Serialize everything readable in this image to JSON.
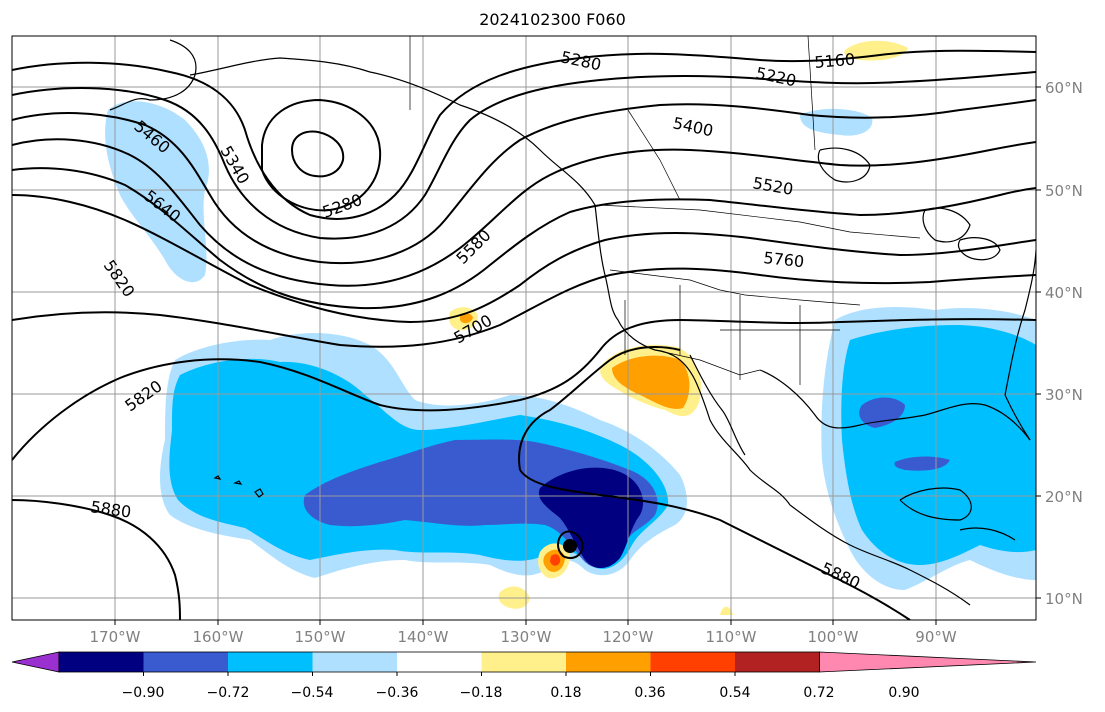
{
  "title": "2024102300 F060",
  "lat_labels": [
    "60°N",
    "50°N",
    "40°N",
    "30°N",
    "20°N",
    "10°N"
  ],
  "lon_labels": [
    "170°W",
    "160°W",
    "150°W",
    "140°W",
    "130°W",
    "120°W",
    "110°W",
    "100°W",
    "90°W"
  ],
  "contour_labels": [
    "5280",
    "5220",
    "5160",
    "5460",
    "5340",
    "5400",
    "5280",
    "5520",
    "5640",
    "5580",
    "5760",
    "5820",
    "5700",
    "5820",
    "5880",
    "5880"
  ],
  "colorbar": {
    "ticks": [
      "−0.90",
      "−0.72",
      "−0.54",
      "−0.36",
      "−0.18",
      "0.18",
      "0.36",
      "0.54",
      "0.72",
      "0.90"
    ],
    "colors": [
      "#9b30d0",
      "#000080",
      "#3a5bd0",
      "#00bfff",
      "#b0e0ff",
      "#ffffff",
      "#fff08c",
      "#ffa000",
      "#ff4000",
      "#b22222",
      "#ff88b0"
    ]
  },
  "colors": {
    "neg_weak": "#b0e0ff",
    "neg_mid": "#00bfff",
    "neg_strong": "#3a5bd0",
    "neg_max": "#000080",
    "pos_weak": "#fff08c",
    "pos_mid": "#ffa000",
    "pos_strong": "#ff4000"
  }
}
